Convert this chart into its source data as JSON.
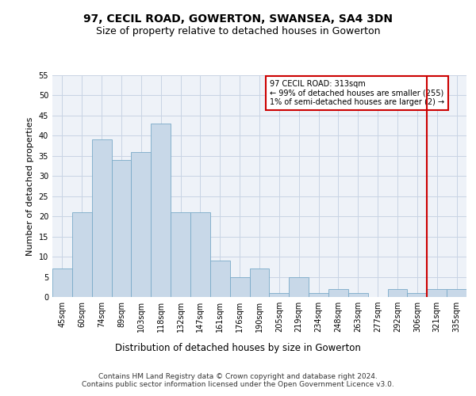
{
  "title1": "97, CECIL ROAD, GOWERTON, SWANSEA, SA4 3DN",
  "title2": "Size of property relative to detached houses in Gowerton",
  "xlabel": "Distribution of detached houses by size in Gowerton",
  "ylabel": "Number of detached properties",
  "categories": [
    "45sqm",
    "60sqm",
    "74sqm",
    "89sqm",
    "103sqm",
    "118sqm",
    "132sqm",
    "147sqm",
    "161sqm",
    "176sqm",
    "190sqm",
    "205sqm",
    "219sqm",
    "234sqm",
    "248sqm",
    "263sqm",
    "277sqm",
    "292sqm",
    "306sqm",
    "321sqm",
    "335sqm"
  ],
  "values": [
    7,
    21,
    39,
    34,
    36,
    43,
    21,
    21,
    9,
    5,
    7,
    1,
    5,
    1,
    2,
    1,
    0,
    2,
    1,
    2,
    2
  ],
  "bar_color": "#c8d8e8",
  "bar_edge_color": "#7aaac8",
  "vline_x_index": 18.5,
  "vline_color": "#cc0000",
  "annotation_text": "97 CECIL ROAD: 313sqm\n← 99% of detached houses are smaller (255)\n1% of semi-detached houses are larger (2) →",
  "annotation_box_color": "#cc0000",
  "ylim": [
    0,
    55
  ],
  "yticks": [
    0,
    5,
    10,
    15,
    20,
    25,
    30,
    35,
    40,
    45,
    50,
    55
  ],
  "grid_color": "#c8d4e4",
  "bg_color": "#eef2f8",
  "footer_text": "Contains HM Land Registry data © Crown copyright and database right 2024.\nContains public sector information licensed under the Open Government Licence v3.0.",
  "title1_fontsize": 10,
  "title2_fontsize": 9,
  "xlabel_fontsize": 8.5,
  "ylabel_fontsize": 8,
  "tick_fontsize": 7,
  "footer_fontsize": 6.5
}
